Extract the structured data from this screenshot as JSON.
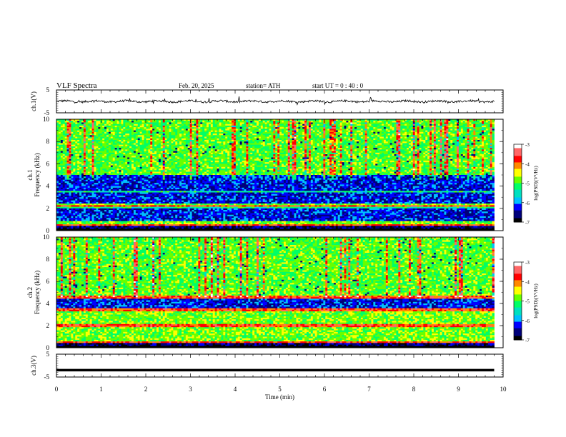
{
  "header": {
    "title": "VLF  Spectra",
    "date": "Feb. 20, 2025",
    "station": "station= ATH",
    "start": "start  UT  =    0  : 40 : 0"
  },
  "chart_data": [
    {
      "type": "line",
      "ylabel": "ch.1(V)",
      "ylim": [
        -5,
        5
      ],
      "yticks": [
        "5",
        "-5"
      ],
      "xlim": [
        0,
        10
      ],
      "baseline_value": 0,
      "noise_amplitude": 1,
      "color": "#000000"
    },
    {
      "type": "heatmap",
      "ylabel": "ch.1\nFrequency (kHz)",
      "ylim": [
        0,
        10
      ],
      "yticks": [
        "0",
        "2",
        "4",
        "6",
        "8",
        "10"
      ],
      "xlim": [
        0,
        10
      ],
      "colorbar": {
        "label": "log(PSD)(V²/Hz)",
        "range": [
          -7,
          -3
        ],
        "ticks": [
          "-3",
          "-4",
          "-5",
          "-6",
          "-7"
        ]
      },
      "dark_bands_khz": [
        [
          2.5,
          5.0
        ],
        [
          0.8,
          2.2
        ]
      ],
      "bright_lines_khz": [
        2.1,
        0.5,
        3.5
      ]
    },
    {
      "type": "heatmap",
      "ylabel": "ch.2\nFrequency (kHz)",
      "ylim": [
        0,
        10
      ],
      "yticks": [
        "0",
        "2",
        "4",
        "6",
        "8",
        "10"
      ],
      "xlim": [
        0,
        10
      ],
      "colorbar": {
        "label": "log(PSD)(V²/Hz)",
        "range": [
          -7,
          -3
        ],
        "ticks": [
          "-3",
          "-4",
          "-5",
          "-6",
          "-7"
        ]
      },
      "dark_bands_khz": [
        [
          3.6,
          4.4
        ]
      ],
      "bright_lines_khz": [
        2.0,
        4.6,
        3.4,
        0.5
      ]
    },
    {
      "type": "line",
      "ylabel": "ch.3(V)",
      "ylim": [
        -5,
        5
      ],
      "yticks": [
        "5",
        "-5"
      ],
      "xlim": [
        0,
        10
      ],
      "baseline_value": -2,
      "color": "#000000"
    }
  ],
  "xaxis": {
    "label": "Time  (min)",
    "ticks": [
      "0",
      "1",
      "2",
      "3",
      "4",
      "5",
      "6",
      "7",
      "8",
      "9",
      "10"
    ],
    "data_end": 9.8
  },
  "colors": {
    "colormap": [
      "#000000",
      "#00007a",
      "#0000ff",
      "#00bfff",
      "#00e0c0",
      "#00ff66",
      "#66ff00",
      "#ffff00",
      "#ff8800",
      "#ff0000",
      "#ff6666",
      "#ffffff"
    ]
  }
}
